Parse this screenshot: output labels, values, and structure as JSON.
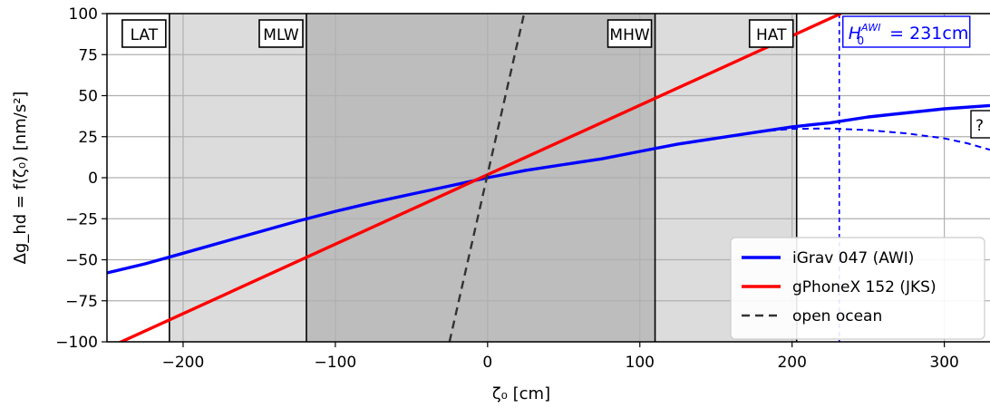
{
  "colors": {
    "shade_light": "#dcdcdc",
    "shade_dark": "#bdbdbd",
    "grid": "#b0b0b0",
    "igrav": "#0000ff",
    "gphone": "#ff0000",
    "ocean": "#333333",
    "h0_line": "#0000ff"
  },
  "chart_data": {
    "type": "line",
    "xlabel": "ζ₀ [cm]",
    "ylabel": "Δg_hd = f(ζ₀) [nm/s²]",
    "xlim": [
      -250,
      330
    ],
    "ylim": [
      -100,
      100
    ],
    "xticks": [
      -200,
      -100,
      0,
      100,
      200,
      300
    ],
    "xtick_labels": [
      "−200",
      "−100",
      "0",
      "100",
      "200",
      "300"
    ],
    "yticks": [
      -100,
      -75,
      -50,
      -25,
      0,
      25,
      50,
      75,
      100
    ],
    "ytick_labels": [
      "−100",
      "−75",
      "−50",
      "−25",
      "0",
      "25",
      "50",
      "75",
      "100"
    ],
    "grid": true,
    "legend_position": "bottom-right",
    "tide_levels": [
      {
        "label": "LAT",
        "x": -209
      },
      {
        "label": "MLW",
        "x": -119
      },
      {
        "label": "MHW",
        "x": 110
      },
      {
        "label": "HAT",
        "x": 203
      }
    ],
    "shaded_regions": [
      {
        "from": -209,
        "to": 203,
        "tone": "light"
      },
      {
        "from": -119,
        "to": 110,
        "tone": "dark"
      }
    ],
    "reference_line": {
      "x": 231,
      "label_main": "H",
      "label_sub": "0",
      "label_sup": "AWI",
      "label_value": " = 231cm"
    },
    "question_mark": "?",
    "series": [
      {
        "name": "iGrav 047 (AWI)",
        "style": "solid",
        "x": [
          -250,
          -225,
          -200,
          -175,
          -150,
          -125,
          -100,
          -75,
          -50,
          -25,
          0,
          25,
          50,
          75,
          100,
          125,
          150,
          175,
          200,
          225,
          250,
          275,
          300,
          330
        ],
        "y": [
          -58.0,
          -52.5,
          -46.0,
          -39.5,
          -33.0,
          -26.5,
          -20.5,
          -15.0,
          -10.0,
          -5.0,
          0.0,
          4.5,
          8.0,
          11.5,
          16.0,
          20.5,
          24.0,
          27.5,
          31.0,
          33.5,
          37.0,
          39.5,
          42.0,
          44.0
        ]
      },
      {
        "name": "iGrav 047 (AWI) continuation",
        "style": "dashed",
        "x": [
          150,
          175,
          200,
          225,
          250,
          275,
          300,
          315,
          330
        ],
        "y": [
          24.0,
          27.8,
          29.8,
          30.0,
          29.0,
          27.0,
          24.0,
          21.0,
          17.0
        ]
      },
      {
        "name": "gPhoneX 152 (JKS)",
        "style": "solid",
        "x": [
          -250,
          232
        ],
        "y": [
          -104,
          100
        ]
      },
      {
        "name": "open ocean",
        "style": "dashed",
        "x": [
          -25,
          24
        ],
        "y": [
          -100,
          100
        ]
      }
    ],
    "legend": [
      {
        "label": "iGrav 047 (AWI)",
        "color_key": "igrav",
        "style": "solid"
      },
      {
        "label": "gPhoneX 152 (JKS)",
        "color_key": "gphone",
        "style": "solid"
      },
      {
        "label": "open ocean",
        "color_key": "ocean",
        "style": "dashed"
      }
    ]
  }
}
